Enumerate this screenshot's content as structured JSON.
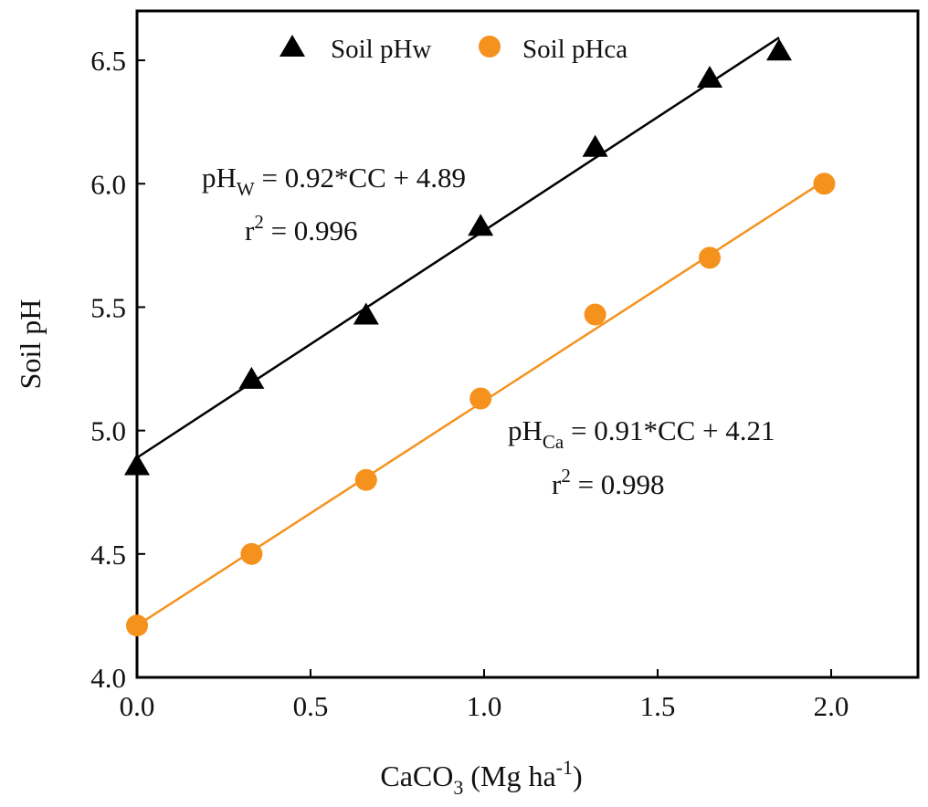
{
  "chart_data": {
    "type": "scatter",
    "title": "",
    "xlabel": {
      "main": "CaCO",
      "sub": "3",
      "rest": " (Mg ha",
      "sup": "-1",
      "end": ")"
    },
    "ylabel": "Soil pH",
    "xlim": [
      0.0,
      2.25
    ],
    "ylim": [
      4.0,
      6.7
    ],
    "xticks": [
      {
        "value": 0.0,
        "label": "0.0"
      },
      {
        "value": 0.5,
        "label": "0.5"
      },
      {
        "value": 1.0,
        "label": "1.0"
      },
      {
        "value": 1.5,
        "label": "1.5"
      },
      {
        "value": 2.0,
        "label": "2.0"
      }
    ],
    "yticks": [
      {
        "value": 4.0,
        "label": "4.0"
      },
      {
        "value": 4.5,
        "label": "4.5"
      },
      {
        "value": 5.0,
        "label": "5.0"
      },
      {
        "value": 5.5,
        "label": "5.5"
      },
      {
        "value": 6.0,
        "label": "6.0"
      },
      {
        "value": 6.5,
        "label": "6.5"
      }
    ],
    "grid": false,
    "legend_position": "top-center",
    "series": [
      {
        "name": "Soil pHw",
        "marker": "triangle",
        "color": "#000000",
        "x": [
          0.0,
          0.33,
          0.66,
          0.99,
          1.32,
          1.65,
          1.85
        ],
        "y": [
          4.86,
          5.21,
          5.47,
          5.83,
          6.15,
          6.43,
          6.54
        ],
        "fit": {
          "slope": 0.92,
          "intercept": 4.89,
          "x_range": [
            0.0,
            1.85
          ]
        },
        "equation": {
          "lhs": "pH",
          "sub": "W",
          "rhs": " = 0.92*CC + 4.89"
        },
        "r2": {
          "r": "r",
          "sup": "2",
          "rest": " = 0.996"
        }
      },
      {
        "name": "Soil pHca",
        "marker": "circle",
        "color": "#F5921E",
        "x": [
          0.0,
          0.33,
          0.66,
          0.99,
          1.32,
          1.65,
          1.98
        ],
        "y": [
          4.21,
          4.5,
          4.8,
          5.13,
          5.47,
          5.7,
          6.0
        ],
        "fit": {
          "slope": 0.91,
          "intercept": 4.21,
          "x_range": [
            0.0,
            1.98
          ]
        },
        "equation": {
          "lhs": "pH",
          "sub": "Ca",
          "rhs": " = 0.91*CC + 4.21"
        },
        "r2": {
          "r": "r",
          "sup": "2",
          "rest": " = 0.998"
        }
      }
    ]
  }
}
